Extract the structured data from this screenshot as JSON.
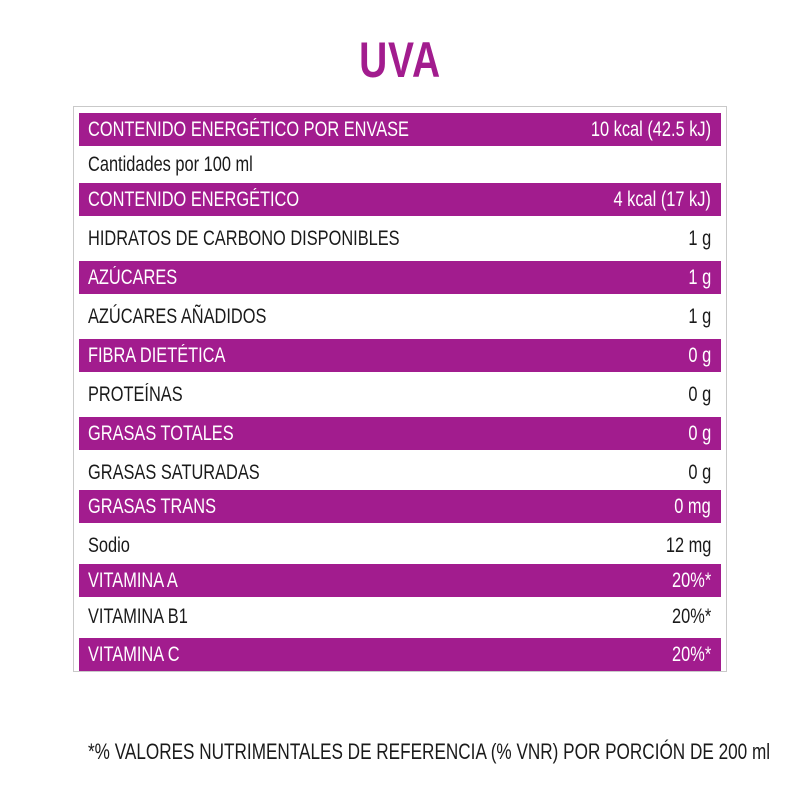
{
  "title": "UVA",
  "rows": [
    {
      "label": "CONTENIDO ENERGÉTICO POR ENVASE",
      "value": "10 kcal (42.5 kJ)",
      "style": "purple"
    },
    {
      "label": "Cantidades por 100 ml",
      "value": "",
      "style": "white"
    },
    {
      "label": "CONTENIDO ENERGÉTICO",
      "value": "4 kcal (17 kJ)",
      "style": "purple"
    },
    {
      "label": "HIDRATOS DE CARBONO DISPONIBLES",
      "value": "1 g",
      "style": "white"
    },
    {
      "label": "AZÚCARES",
      "value": "1 g",
      "style": "purple"
    },
    {
      "label": "AZÚCARES AÑADIDOS",
      "value": "1 g",
      "style": "white"
    },
    {
      "label": "FIBRA DIETÉTICA",
      "value": "0 g",
      "style": "purple"
    },
    {
      "label": "PROTEÍNAS",
      "value": "0 g",
      "style": "white"
    },
    {
      "label": "GRASAS TOTALES",
      "value": "0 g",
      "style": "purple"
    },
    {
      "label": "GRASAS SATURADAS",
      "value": "0 g",
      "style": "white"
    },
    {
      "label": "GRASAS TRANS",
      "value": "0 mg",
      "style": "purple"
    },
    {
      "label": "Sodio",
      "value": "12 mg",
      "style": "white"
    },
    {
      "label": "VITAMINA A",
      "value": "20%*",
      "style": "purple"
    },
    {
      "label": "VITAMINA B1",
      "value": "20%*",
      "style": "white"
    },
    {
      "label": "VITAMINA C",
      "value": "20%*",
      "style": "purple"
    }
  ],
  "footnote": "*% VALORES NUTRIMENTALES DE REFERENCIA (% VNR) POR PORCIÓN DE 200 ml",
  "colors": {
    "accent": "#a21c8e",
    "text": "#1a1a1a",
    "border": "#c9c9c9"
  }
}
